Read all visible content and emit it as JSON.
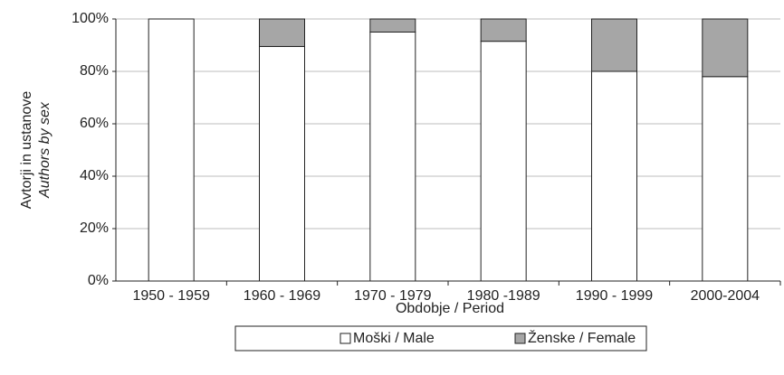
{
  "chart_data": {
    "type": "stacked_bar",
    "y_label": [
      "Avtorji in ustanove",
      "Authors by sex"
    ],
    "x_label": "Obdobje / Period",
    "categories": [
      "1950 - 1959",
      "1960 - 1969",
      "1970 - 1979",
      "1980 -1989",
      "1990 - 1999",
      "2000-2004"
    ],
    "series": [
      {
        "name": "Moški / Male",
        "color": "#ffffff",
        "values": [
          100,
          89.5,
          95,
          91.5,
          80,
          78
        ]
      },
      {
        "name": "Ženske / Female",
        "color": "#a6a6a6",
        "values": [
          0,
          10.5,
          5,
          8.5,
          20,
          22
        ]
      }
    ],
    "ylim": [
      0,
      100
    ],
    "yticks": [
      {
        "value": 0,
        "label": "0%"
      },
      {
        "value": 20,
        "label": "20%"
      },
      {
        "value": 40,
        "label": "40%"
      },
      {
        "value": 60,
        "label": "60%"
      },
      {
        "value": 80,
        "label": "80%"
      },
      {
        "value": 100,
        "label": "100%"
      }
    ],
    "grid": true,
    "legend": "bottom"
  }
}
